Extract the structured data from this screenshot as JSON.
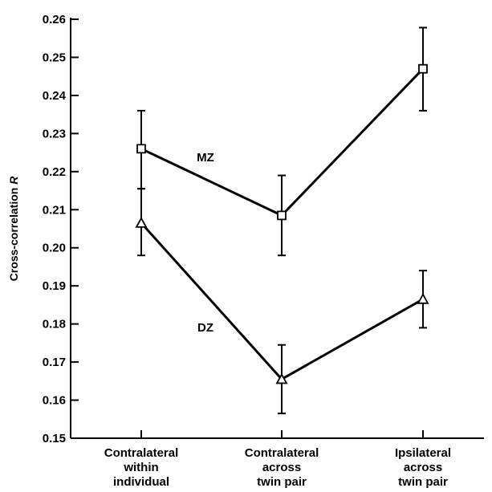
{
  "chart_data": {
    "type": "line",
    "title": "",
    "xlabel": "",
    "ylabel": "Cross-correlation",
    "ylabel_italic": "R",
    "categories": [
      [
        "Contralateral",
        "within",
        "individual"
      ],
      [
        "Contralateral",
        "across",
        "twin pair"
      ],
      [
        "Ipsilateral",
        "across",
        "twin pair"
      ]
    ],
    "ylim": [
      0.15,
      0.26
    ],
    "yticks": [
      "0.15",
      "0.16",
      "0.17",
      "0.18",
      "0.19",
      "0.20",
      "0.21",
      "0.22",
      "0.23",
      "0.24",
      "0.25",
      "0.26"
    ],
    "grid": false,
    "series": [
      {
        "name": "MZ",
        "marker": "square",
        "values": [
          0.226,
          0.2085,
          0.247
        ],
        "err_low": [
          0.2155,
          0.198,
          0.236
        ],
        "err_high": [
          0.236,
          0.219,
          0.2578
        ]
      },
      {
        "name": "DZ",
        "marker": "triangle",
        "values": [
          0.2065,
          0.1655,
          0.1865
        ],
        "err_low": [
          0.198,
          0.1565,
          0.179
        ],
        "err_high": [
          0.2155,
          0.1745,
          0.194
        ]
      }
    ]
  }
}
